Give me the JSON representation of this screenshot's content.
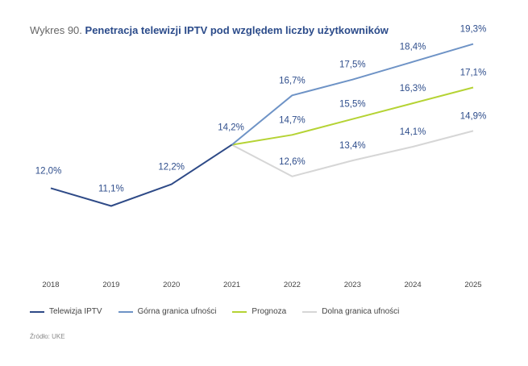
{
  "title": {
    "prefix": "Wykres 90.",
    "main": "Penetracja telewizji IPTV pod względem liczby użytkowników"
  },
  "source": "Źródło: UKE",
  "colors": {
    "iptv": "#2e4a87",
    "upper": "#6e93c6",
    "forecast": "#b5d334",
    "lower": "#d6d6d6",
    "label": "#2f4e8c"
  },
  "chart_data": {
    "type": "line",
    "title": "Penetracja telewizji IPTV pod względem liczby użytkowników",
    "xlabel": "",
    "ylabel": "",
    "categories": [
      "2018",
      "2019",
      "2020",
      "2021",
      "2022",
      "2023",
      "2024",
      "2025"
    ],
    "ylim": [
      0,
      30
    ],
    "grid": false,
    "legend_position": "bottom",
    "series": [
      {
        "key": "iptv",
        "name": "Telewizja IPTV",
        "values": [
          12.0,
          11.1,
          12.2,
          14.2,
          null,
          null,
          null,
          null
        ],
        "labels": [
          "12,0%",
          "11,1%",
          "12,2%",
          "14,2%",
          null,
          null,
          null,
          null
        ]
      },
      {
        "key": "upper",
        "name": "Górna granica ufności",
        "values": [
          null,
          null,
          null,
          14.2,
          16.7,
          17.5,
          18.4,
          19.3
        ],
        "labels": [
          null,
          null,
          null,
          null,
          "16,7%",
          "17,5%",
          "18,4%",
          "19,3%"
        ]
      },
      {
        "key": "forecast",
        "name": "Prognoza",
        "values": [
          null,
          null,
          null,
          14.2,
          14.7,
          15.5,
          16.3,
          17.1
        ],
        "labels": [
          null,
          null,
          null,
          null,
          "14,7%",
          "15,5%",
          "16,3%",
          "17,1%"
        ]
      },
      {
        "key": "lower",
        "name": "Dolna granica ufności",
        "values": [
          null,
          null,
          null,
          14.2,
          12.6,
          13.4,
          14.1,
          14.9
        ],
        "labels": [
          null,
          null,
          null,
          null,
          "12,6%",
          "13,4%",
          "14,1%",
          "14,9%"
        ]
      }
    ]
  }
}
